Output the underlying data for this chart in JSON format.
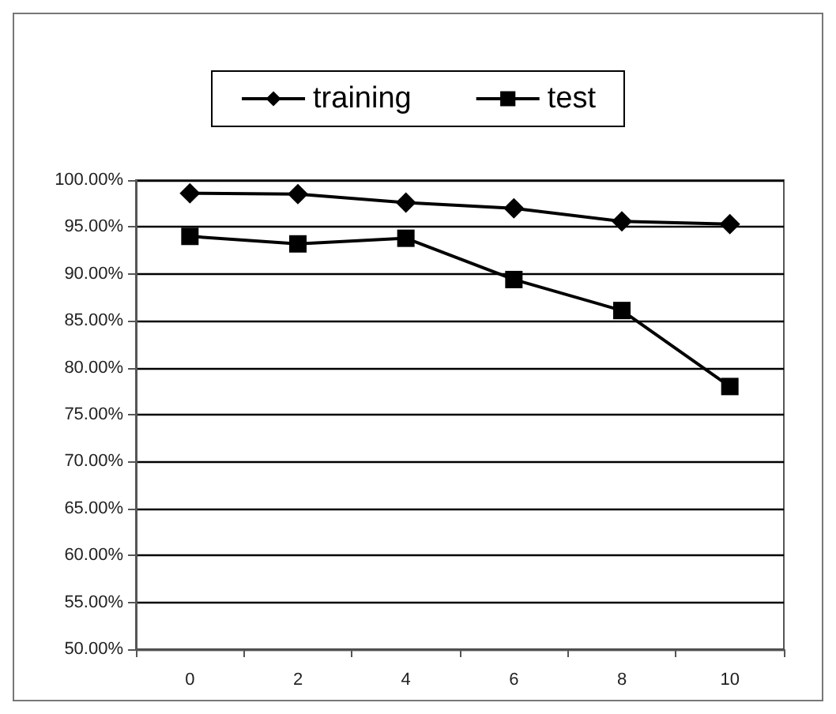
{
  "chart_data": {
    "type": "line",
    "categories": [
      "0",
      "2",
      "4",
      "6",
      "8",
      "10"
    ],
    "series": [
      {
        "name": "training",
        "color": "#000000",
        "marker": "diamond",
        "values": [
          98.6,
          98.5,
          97.6,
          97.0,
          95.6,
          95.3
        ]
      },
      {
        "name": "test",
        "color": "#000000",
        "marker": "square",
        "values": [
          94.0,
          93.2,
          93.8,
          89.4,
          86.1,
          78.0
        ]
      }
    ],
    "ylim": [
      50,
      100
    ],
    "yticks": [
      {
        "value": 50,
        "label": "50.00%"
      },
      {
        "value": 55,
        "label": "55.00%"
      },
      {
        "value": 60,
        "label": "60.00%"
      },
      {
        "value": 65,
        "label": "65.00%"
      },
      {
        "value": 70,
        "label": "70.00%"
      },
      {
        "value": 75,
        "label": "75.00%"
      },
      {
        "value": 80,
        "label": "80.00%"
      },
      {
        "value": 85,
        "label": "85.00%"
      },
      {
        "value": 90,
        "label": "90.00%"
      },
      {
        "value": 95,
        "label": "95.00%"
      },
      {
        "value": 100,
        "label": "100.00%"
      }
    ],
    "grid": "y",
    "legend": "top",
    "line_style": "solid"
  }
}
